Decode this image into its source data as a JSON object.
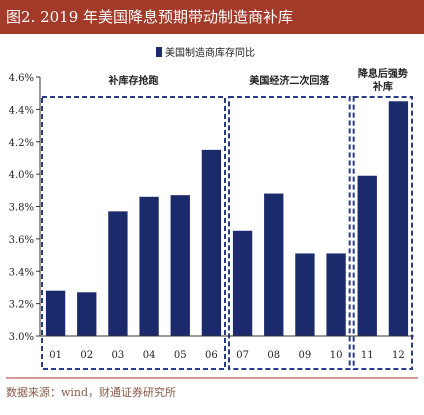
{
  "header": {
    "title": "图2. 2019 年美国降息预期带动制造商补库"
  },
  "source": "数据来源：wind，财通证券研究所",
  "colors": {
    "bar": "#1b2a6b",
    "title_bg": "#a43a2a",
    "dashed": "#2a3a8a"
  },
  "chart_data": {
    "type": "bar",
    "categories": [
      "01",
      "02",
      "03",
      "04",
      "05",
      "06",
      "07",
      "08",
      "09",
      "10",
      "11",
      "12"
    ],
    "series": [
      {
        "name": "美国制造商库存同比",
        "values": [
          3.28,
          3.27,
          3.77,
          3.86,
          3.87,
          4.15,
          3.65,
          3.88,
          3.51,
          3.51,
          3.99,
          4.45
        ]
      }
    ],
    "ylim": [
      3.0,
      4.6
    ],
    "yticks": [
      "3.0%",
      "3.2%",
      "3.4%",
      "3.6%",
      "3.8%",
      "4.0%",
      "4.2%",
      "4.4%",
      "4.6%"
    ],
    "legend_position": "top-center",
    "grid": false,
    "annotations": [
      {
        "label": "补库存抢跑",
        "from": 0,
        "to": 5
      },
      {
        "label": "美国经济二次回落",
        "from": 6,
        "to": 9
      },
      {
        "label": "降息后强势补库",
        "from": 10,
        "to": 11
      }
    ]
  }
}
